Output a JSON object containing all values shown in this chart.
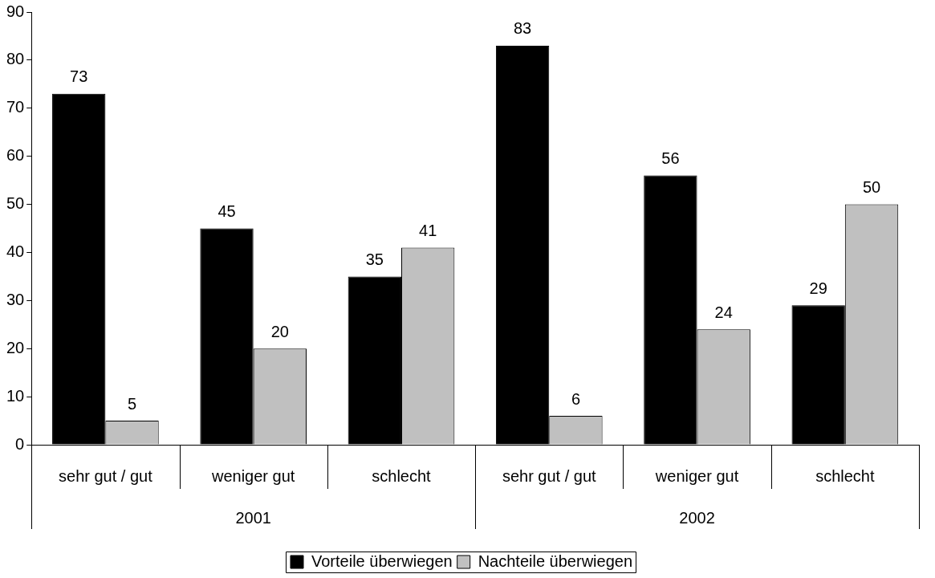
{
  "chart_data": {
    "type": "bar",
    "categories": [
      "sehr gut / gut",
      "weniger gut",
      "schlecht",
      "sehr gut / gut",
      "weniger gut",
      "schlecht"
    ],
    "series": [
      {
        "name": "Vorteile überwiegen",
        "color": "#000000",
        "values": [
          73,
          45,
          35,
          83,
          56,
          29
        ]
      },
      {
        "name": "Nachteile überwiegen",
        "color": "#c0c0c0",
        "values": [
          5,
          20,
          41,
          6,
          24,
          50
        ]
      }
    ],
    "annotations": [
      "2001",
      "2002"
    ],
    "ylim": [
      0,
      90
    ],
    "yticks": [
      0,
      10,
      20,
      30,
      40,
      50,
      60,
      70,
      80,
      90
    ],
    "grid": false,
    "legend": "bottom",
    "data_labels": true
  }
}
